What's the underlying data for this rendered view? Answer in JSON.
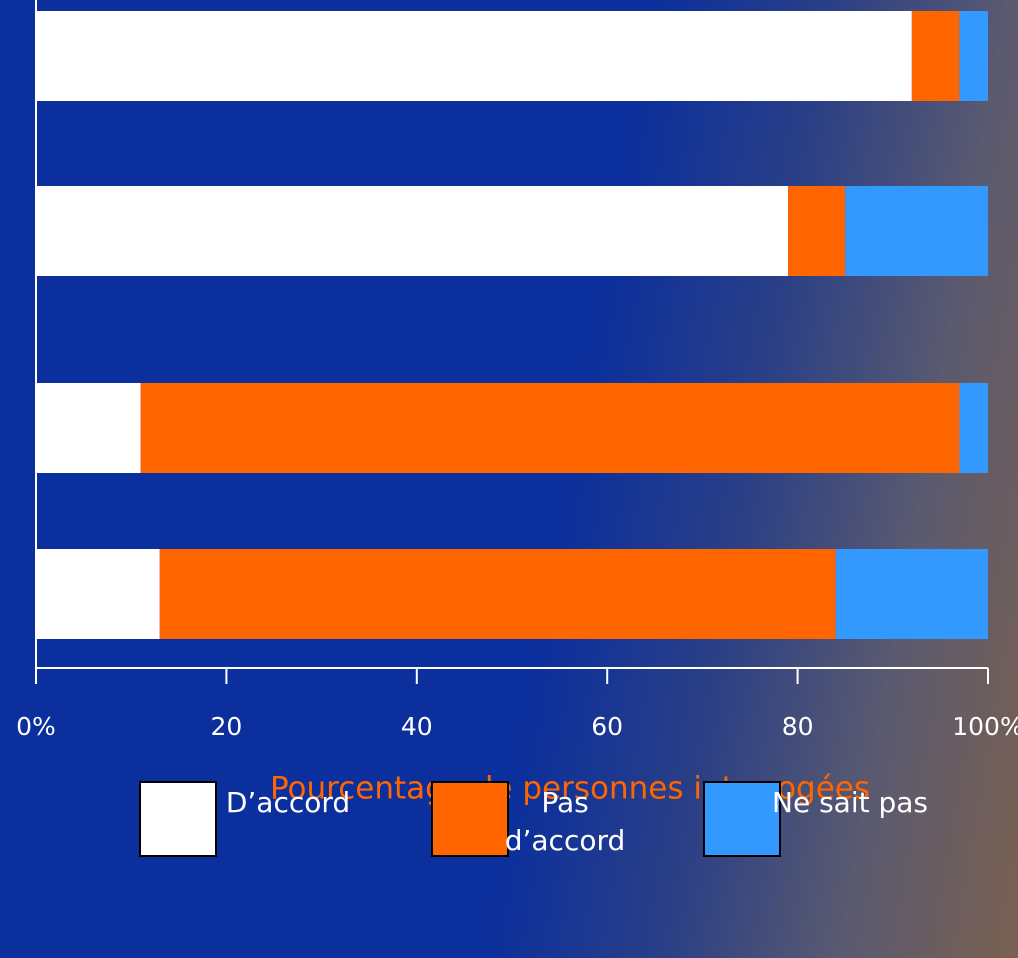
{
  "chart_data": {
    "type": "stacked-barh",
    "categories": [
      null,
      null,
      null,
      null
    ],
    "series": [
      {
        "name": "D’accord",
        "color": "#ffffff",
        "values": [
          92,
          79,
          11,
          13
        ]
      },
      {
        "name": "Pas d’accord",
        "color": "#ff6600",
        "values": [
          5,
          6,
          86,
          71
        ]
      },
      {
        "name": "Ne sait pas",
        "color": "#3399ff",
        "values": [
          3,
          15,
          3,
          16
        ]
      }
    ],
    "xlabel": "Pourcentage de personnes interrogées",
    "xlim": [
      0,
      100
    ],
    "xticks": [
      {
        "value": 0,
        "label": "0%"
      },
      20,
      40,
      60,
      80,
      {
        "value": 100,
        "label": "100%"
      }
    ],
    "xlabel_color": "#ff6600"
  }
}
